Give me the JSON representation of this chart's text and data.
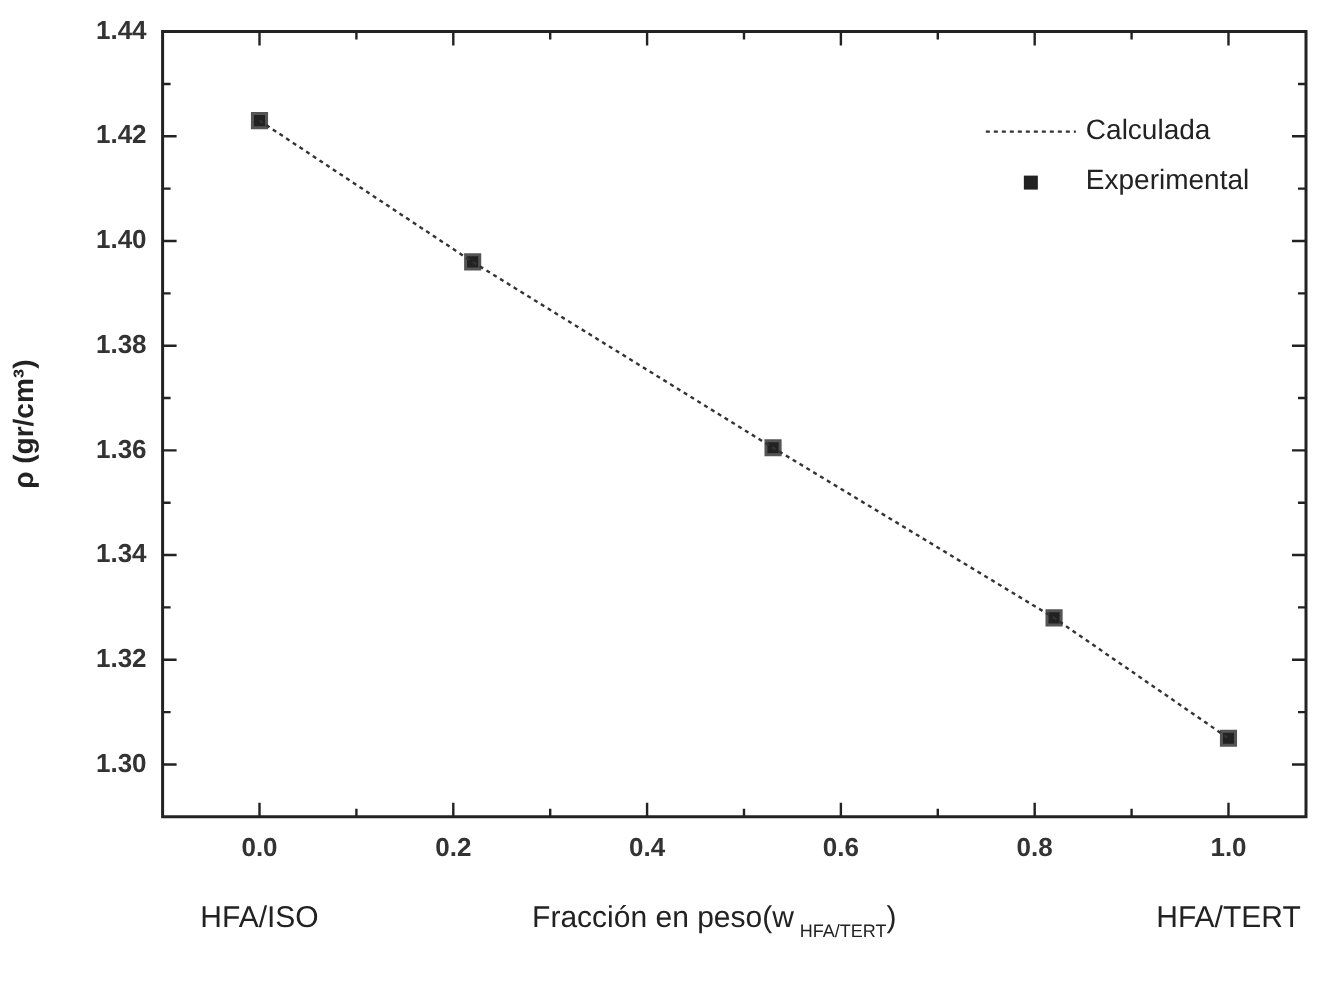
{
  "chart_data": {
    "type": "scatter",
    "xlabel": "Fracción en peso(w$_{HFA/TERT}$)",
    "ylabel": "ρ (gr/cm³)",
    "x": [
      0.0,
      0.22,
      0.53,
      0.82,
      1.0
    ],
    "series": [
      {
        "name": "Calculada",
        "type": "line",
        "color": "#333333",
        "marker": "none",
        "line_style": "dotted",
        "values": [
          1.423,
          1.396,
          1.3605,
          1.328,
          1.305
        ]
      },
      {
        "name": "Experimental",
        "type": "scatter",
        "color": "#222222",
        "marker": "square",
        "values": [
          1.423,
          1.396,
          1.3605,
          1.328,
          1.305
        ]
      }
    ],
    "xlim": [
      -0.1,
      1.08
    ],
    "xticks": [
      {
        "value": 0,
        "label": "0.0"
      },
      {
        "value": 0.1,
        "label": null
      },
      0.2,
      {
        "value": 0.3,
        "label": null
      },
      0.4,
      {
        "value": 0.5,
        "label": null
      },
      0.6,
      {
        "value": 0.7,
        "label": null
      },
      0.8,
      {
        "value": 0.9,
        "label": null
      },
      {
        "value": 1,
        "label": "1.0"
      }
    ],
    "ylim": [
      1.29,
      1.44
    ],
    "yticks": [
      {
        "value": 1.3,
        "label": "1.30"
      },
      {
        "value": 1.31,
        "label": null
      },
      1.32,
      {
        "value": 1.33,
        "label": null
      },
      1.34,
      {
        "value": 1.35,
        "label": null
      },
      1.36,
      {
        "value": 1.37,
        "label": null
      },
      1.38,
      {
        "value": 1.39,
        "label": null
      },
      {
        "value": 1.4,
        "label": "1.40"
      },
      {
        "value": 1.41,
        "label": null
      },
      1.42,
      {
        "value": 1.43,
        "label": null
      },
      1.44
    ],
    "annotations": [
      "HFA/ISO",
      "HFA/TERT"
    ],
    "grid": false,
    "legend": "top right"
  }
}
